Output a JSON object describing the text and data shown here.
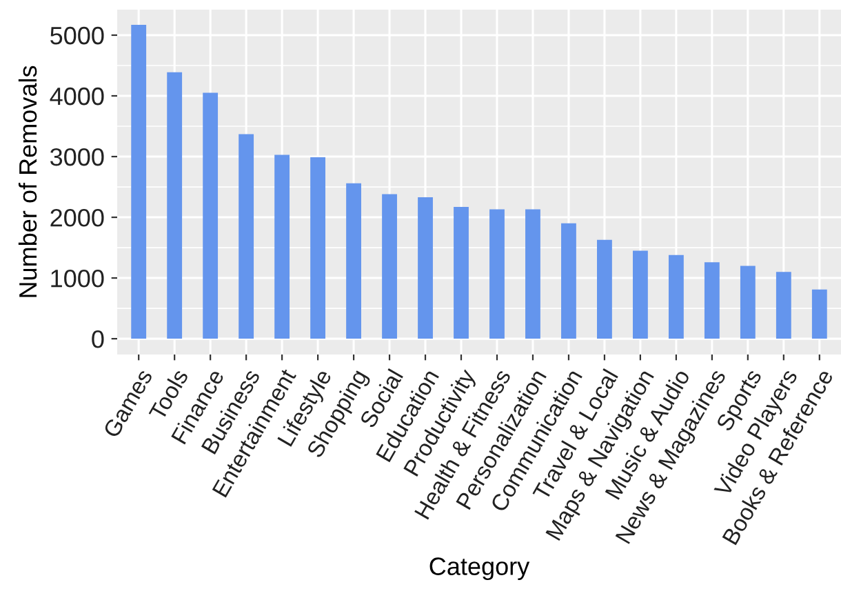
{
  "chart_data": {
    "type": "bar",
    "xlabel": "Category",
    "ylabel": "Number of Removals",
    "categories": [
      "Games",
      "Tools",
      "Finance",
      "Business",
      "Entertainment",
      "Lifestyle",
      "Shopping",
      "Social",
      "Education",
      "Productivity",
      "Health & Fitness",
      "Personalization",
      "Communication",
      "Travel & Local",
      "Maps & Navigation",
      "Music & Audio",
      "News & Magazines",
      "Sports",
      "Video Players",
      "Books & Reference"
    ],
    "values": [
      5170,
      4390,
      4050,
      3370,
      3030,
      2990,
      2560,
      2380,
      2330,
      2170,
      2130,
      2130,
      1900,
      1630,
      1450,
      1380,
      1260,
      1200,
      1100,
      810
    ],
    "color": "#6495ed",
    "ylim": [
      -260,
      5420
    ],
    "yticks": [
      0,
      1000,
      2000,
      3000,
      4000,
      5000
    ],
    "grid": true
  }
}
